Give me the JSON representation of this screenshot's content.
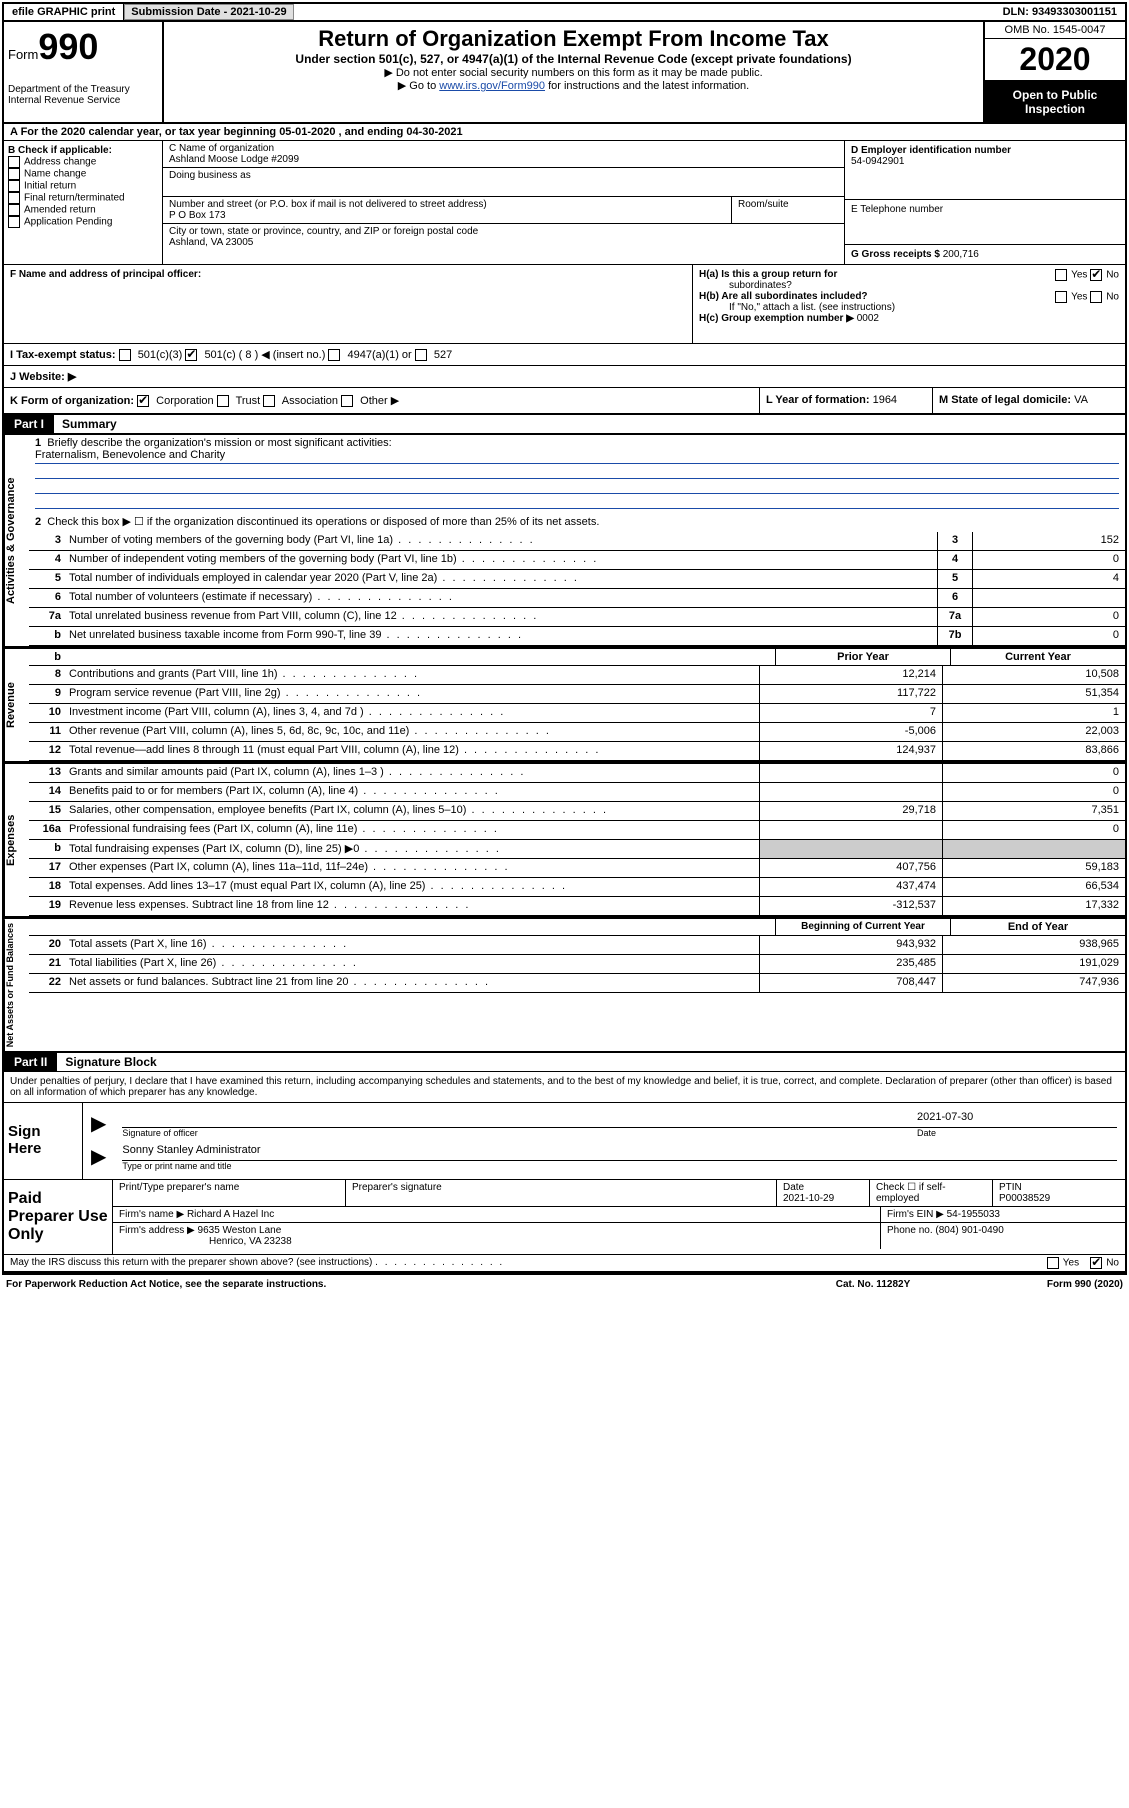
{
  "topbar": {
    "efile": "efile GRAPHIC print",
    "submission_label": "Submission Date",
    "submission_date": "2021-10-29",
    "dln_label": "DLN:",
    "dln": "93493303001151"
  },
  "header": {
    "form_label": "Form",
    "form_number": "990",
    "dept": "Department of the Treasury",
    "irs": "Internal Revenue Service",
    "title": "Return of Organization Exempt From Income Tax",
    "subtitle": "Under section 501(c), 527, or 4947(a)(1) of the Internal Revenue Code (except private foundations)",
    "note1": "▶ Do not enter social security numbers on this form as it may be made public.",
    "note2_prefix": "▶ Go to ",
    "note2_link": "www.irs.gov/Form990",
    "note2_suffix": " for instructions and the latest information.",
    "omb": "OMB No. 1545-0047",
    "year": "2020",
    "open_public": "Open to Public Inspection"
  },
  "rowA": {
    "text": "A For the 2020 calendar year, or tax year beginning 05-01-2020    , and ending 04-30-2021"
  },
  "boxB": {
    "title": "B Check if applicable:",
    "opt1": "Address change",
    "opt2": "Name change",
    "opt3": "Initial return",
    "opt4": "Final return/terminated",
    "opt5": "Amended return",
    "opt6": "Application Pending"
  },
  "boxC": {
    "name_label": "C Name of organization",
    "name": "Ashland Moose Lodge #2099",
    "dba_label": "Doing business as",
    "street_label": "Number and street (or P.O. box if mail is not delivered to street address)",
    "room_label": "Room/suite",
    "street": "P O Box 173",
    "city_label": "City or town, state or province, country, and ZIP or foreign postal code",
    "city": "Ashland, VA  23005"
  },
  "boxD": {
    "ein_label": "D Employer identification number",
    "ein": "54-0942901",
    "phone_label": "E Telephone number",
    "gross_label": "G Gross receipts $",
    "gross": "200,716"
  },
  "boxF": {
    "label": "F  Name and address of principal officer:"
  },
  "boxH": {
    "ha_label": "H(a)  Is this a group return for",
    "ha_sub": "subordinates?",
    "hb_label": "H(b)  Are all subordinates included?",
    "hb_note": "If \"No,\" attach a list. (see instructions)",
    "hc_label": "H(c)  Group exemption number ▶",
    "hc_val": "0002",
    "yes": "Yes",
    "no": "No"
  },
  "rowI": {
    "label": "I    Tax-exempt status:",
    "opt1": "501(c)(3)",
    "opt2": "501(c) ( 8 ) ◀ (insert no.)",
    "opt3": "4947(a)(1) or",
    "opt4": "527"
  },
  "rowJ": {
    "label": "J   Website: ▶"
  },
  "rowK": {
    "label": "K Form of organization:",
    "opt1": "Corporation",
    "opt2": "Trust",
    "opt3": "Association",
    "opt4": "Other ▶",
    "l_label": "L Year of formation:",
    "l_val": "1964",
    "m_label": "M State of legal domicile:",
    "m_val": "VA"
  },
  "partI": {
    "tab": "Part I",
    "title": "Summary",
    "side_gov": "Activities & Governance",
    "side_rev": "Revenue",
    "side_exp": "Expenses",
    "side_net": "Net Assets or Fund Balances",
    "line1_label": "Briefly describe the organization's mission or most significant activities:",
    "line1_val": "Fraternalism, Benevolence and Charity",
    "line2": "Check this box ▶ ☐  if the organization discontinued its operations or disposed of more than 25% of its net assets.",
    "lines_gov": [
      {
        "num": "3",
        "text": "Number of voting members of the governing body (Part VI, line 1a)",
        "box": "3",
        "val": "152"
      },
      {
        "num": "4",
        "text": "Number of independent voting members of the governing body (Part VI, line 1b)",
        "box": "4",
        "val": "0"
      },
      {
        "num": "5",
        "text": "Total number of individuals employed in calendar year 2020 (Part V, line 2a)",
        "box": "5",
        "val": "4"
      },
      {
        "num": "6",
        "text": "Total number of volunteers (estimate if necessary)",
        "box": "6",
        "val": ""
      },
      {
        "num": "7a",
        "text": "Total unrelated business revenue from Part VIII, column (C), line 12",
        "box": "7a",
        "val": "0"
      },
      {
        "num": "b",
        "text": "Net unrelated business taxable income from Form 990-T, line 39",
        "box": "7b",
        "val": "0"
      }
    ],
    "col_prior": "Prior Year",
    "col_current": "Current Year",
    "lines_rev": [
      {
        "num": "8",
        "text": "Contributions and grants (Part VIII, line 1h)",
        "prior": "12,214",
        "current": "10,508"
      },
      {
        "num": "9",
        "text": "Program service revenue (Part VIII, line 2g)",
        "prior": "117,722",
        "current": "51,354"
      },
      {
        "num": "10",
        "text": "Investment income (Part VIII, column (A), lines 3, 4, and 7d )",
        "prior": "7",
        "current": "1"
      },
      {
        "num": "11",
        "text": "Other revenue (Part VIII, column (A), lines 5, 6d, 8c, 9c, 10c, and 11e)",
        "prior": "-5,006",
        "current": "22,003"
      },
      {
        "num": "12",
        "text": "Total revenue—add lines 8 through 11 (must equal Part VIII, column (A), line 12)",
        "prior": "124,937",
        "current": "83,866"
      }
    ],
    "lines_exp": [
      {
        "num": "13",
        "text": "Grants and similar amounts paid (Part IX, column (A), lines 1–3 )",
        "prior": "",
        "current": "0"
      },
      {
        "num": "14",
        "text": "Benefits paid to or for members (Part IX, column (A), line 4)",
        "prior": "",
        "current": "0"
      },
      {
        "num": "15",
        "text": "Salaries, other compensation, employee benefits (Part IX, column (A), lines 5–10)",
        "prior": "29,718",
        "current": "7,351"
      },
      {
        "num": "16a",
        "text": "Professional fundraising fees (Part IX, column (A), line 11e)",
        "prior": "",
        "current": "0"
      },
      {
        "num": "b",
        "text": "Total fundraising expenses (Part IX, column (D), line 25) ▶0",
        "prior": "SHADED",
        "current": "SHADED"
      },
      {
        "num": "17",
        "text": "Other expenses (Part IX, column (A), lines 11a–11d, 11f–24e)",
        "prior": "407,756",
        "current": "59,183"
      },
      {
        "num": "18",
        "text": "Total expenses. Add lines 13–17 (must equal Part IX, column (A), line 25)",
        "prior": "437,474",
        "current": "66,534"
      },
      {
        "num": "19",
        "text": "Revenue less expenses. Subtract line 18 from line 12",
        "prior": "-312,537",
        "current": "17,332"
      }
    ],
    "col_begin": "Beginning of Current Year",
    "col_end": "End of Year",
    "lines_net": [
      {
        "num": "20",
        "text": "Total assets (Part X, line 16)",
        "prior": "943,932",
        "current": "938,965"
      },
      {
        "num": "21",
        "text": "Total liabilities (Part X, line 26)",
        "prior": "235,485",
        "current": "191,029"
      },
      {
        "num": "22",
        "text": "Net assets or fund balances. Subtract line 21 from line 20",
        "prior": "708,447",
        "current": "747,936"
      }
    ]
  },
  "partII": {
    "tab": "Part II",
    "title": "Signature Block",
    "declaration": "Under penalties of perjury, I declare that I have examined this return, including accompanying schedules and statements, and to the best of my knowledge and belief, it is true, correct, and complete. Declaration of preparer (other than officer) is based on all information of which preparer has any knowledge.",
    "sign_here": "Sign Here",
    "sig_officer": "Signature of officer",
    "date_label": "Date",
    "sig_date": "2021-07-30",
    "officer_name": "Sonny Stanley  Administrator",
    "type_name": "Type or print name and title",
    "paid_preparer": "Paid Preparer Use Only",
    "pp_name_label": "Print/Type preparer's name",
    "pp_sig_label": "Preparer's signature",
    "pp_date_label": "Date",
    "pp_date": "2021-10-29",
    "pp_check": "Check ☐ if self-employed",
    "ptin_label": "PTIN",
    "ptin": "P00038529",
    "firm_name_label": "Firm's name     ▶",
    "firm_name": "Richard A Hazel Inc",
    "firm_ein_label": "Firm's EIN ▶",
    "firm_ein": "54-1955033",
    "firm_addr_label": "Firm's address ▶",
    "firm_addr1": "9635 Weston Lane",
    "firm_addr2": "Henrico, VA  23238",
    "phone_label": "Phone no.",
    "phone": "(804) 901-0490",
    "discuss": "May the IRS discuss this return with the preparer shown above? (see instructions)",
    "yes": "Yes",
    "no": "No"
  },
  "footer": {
    "paperwork": "For Paperwork Reduction Act Notice, see the separate instructions.",
    "catno": "Cat. No. 11282Y",
    "formref": "Form 990 (2020)"
  }
}
